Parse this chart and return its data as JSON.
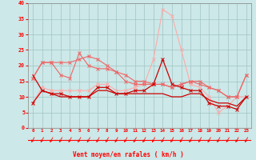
{
  "xlabel": "Vent moyen/en rafales ( km/h )",
  "x": [
    0,
    1,
    2,
    3,
    4,
    5,
    6,
    7,
    8,
    9,
    10,
    11,
    12,
    13,
    14,
    15,
    16,
    17,
    18,
    19,
    20,
    21,
    22,
    23
  ],
  "line_smooth": [
    17,
    12,
    11,
    10,
    10,
    10,
    10,
    12,
    12,
    11,
    11,
    11,
    11,
    11,
    11,
    10,
    10,
    11,
    11,
    9,
    8,
    8,
    7,
    10
  ],
  "line_dark": [
    8,
    12,
    11,
    11,
    10,
    10,
    10,
    13,
    13,
    11,
    11,
    12,
    12,
    14,
    22,
    14,
    13,
    12,
    12,
    8,
    7,
    7,
    6,
    10
  ],
  "line_med1": [
    16,
    21,
    21,
    17,
    16,
    24,
    20,
    19,
    19,
    18,
    15,
    14,
    14,
    14,
    14,
    13,
    14,
    15,
    15,
    13,
    12,
    10,
    10,
    17
  ],
  "line_med2": [
    16,
    21,
    21,
    21,
    21,
    22,
    23,
    22,
    20,
    18,
    17,
    15,
    15,
    14,
    14,
    13,
    14,
    15,
    14,
    13,
    12,
    10,
    10,
    17
  ],
  "line_light": [
    8,
    13,
    12,
    12,
    12,
    12,
    12,
    14,
    14,
    12,
    12,
    13,
    14,
    22,
    38,
    36,
    25,
    14,
    13,
    10,
    5,
    7,
    10,
    10
  ],
  "bg_color": "#cce8e8",
  "grid_color": "#99bbbb",
  "color_dark": "#cc0000",
  "color_med": "#ee6666",
  "color_light": "#ffaaaa",
  "ylim": [
    0,
    40
  ],
  "yticks": [
    0,
    5,
    10,
    15,
    20,
    25,
    30,
    35,
    40
  ]
}
